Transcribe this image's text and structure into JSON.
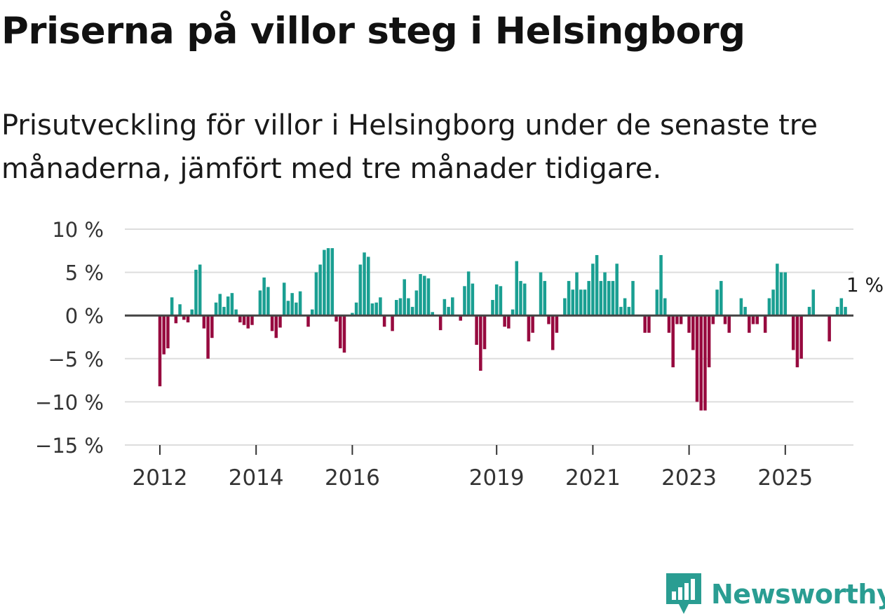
{
  "title": "Priserna på villor steg i Helsingborg",
  "subtitle": "Prisutveckling för villor i Helsingborg under de senaste tre månaderna, jämfört med tre månader tidigare.",
  "brand": "Newsworthy",
  "colors": {
    "positive": "#1a9f92",
    "negative": "#970a3f",
    "brand": "#2a9d92"
  },
  "chart_data": {
    "type": "bar",
    "title": "Priserna på villor steg i Helsingborg",
    "xlabel": "",
    "ylabel": "",
    "x_start": 2012.0,
    "step_years": 0.08333,
    "ylim": [
      -15,
      10
    ],
    "y_ticks": [
      {
        "value": 10,
        "label": "10 %"
      },
      {
        "value": 5,
        "label": "5 %"
      },
      {
        "value": 0,
        "label": "0 %"
      },
      {
        "value": -5,
        "label": "−5 %"
      },
      {
        "value": -10,
        "label": "−10 %"
      },
      {
        "value": -15,
        "label": "−15 %"
      }
    ],
    "x_ticks": [
      {
        "value": 2012,
        "label": "2012"
      },
      {
        "value": 2014,
        "label": "2014"
      },
      {
        "value": 2016,
        "label": "2016"
      },
      {
        "value": 2019,
        "label": "2019"
      },
      {
        "value": 2021,
        "label": "2021"
      },
      {
        "value": 2023,
        "label": "2023"
      },
      {
        "value": 2025,
        "label": "2025"
      }
    ],
    "last_label": "1 %",
    "values": [
      -8.2,
      -4.5,
      -3.8,
      2.1,
      -0.9,
      1.3,
      -0.5,
      -0.8,
      0.7,
      5.3,
      5.9,
      -1.5,
      -5.0,
      -2.6,
      1.5,
      2.5,
      1.0,
      2.2,
      2.6,
      0.7,
      -0.8,
      -1.1,
      -1.5,
      -1.1,
      0.0,
      2.9,
      4.4,
      3.3,
      -1.8,
      -2.6,
      -1.4,
      3.8,
      1.7,
      2.6,
      1.5,
      2.8,
      0.0,
      -1.3,
      0.7,
      5.0,
      5.9,
      7.6,
      7.8,
      7.8,
      -0.7,
      -3.8,
      -4.3,
      0.0,
      0.3,
      1.5,
      5.9,
      7.3,
      6.8,
      1.4,
      1.5,
      2.1,
      -1.3,
      0.0,
      -1.8,
      1.8,
      2.0,
      4.2,
      2.0,
      1.0,
      2.9,
      4.8,
      4.6,
      4.3,
      0.4,
      0.0,
      -1.7,
      1.9,
      1.0,
      2.1,
      0.0,
      -0.6,
      3.4,
      5.1,
      3.7,
      -3.4,
      -6.4,
      -3.9,
      0.0,
      1.8,
      3.6,
      3.4,
      -1.3,
      -1.5,
      0.7,
      6.3,
      4.0,
      3.7,
      -3.0,
      -2.0,
      0.0,
      5.0,
      4.0,
      -1.0,
      -4.0,
      -2.0,
      0.0,
      2.0,
      4.0,
      3.0,
      5.0,
      3.0,
      3.0,
      4.0,
      6.0,
      7.0,
      4.0,
      5.0,
      4.0,
      4.0,
      6.0,
      1.0,
      2.0,
      1.0,
      4.0,
      0.0,
      0.0,
      -2.0,
      -2.0,
      0.0,
      3.0,
      7.0,
      2.0,
      -2.0,
      -6.0,
      -1.0,
      -1.0,
      0.0,
      -2.0,
      -4.0,
      -10.0,
      -11.0,
      -11.0,
      -6.0,
      -1.0,
      3.0,
      4.0,
      -1.0,
      -2.0,
      0.0,
      0.0,
      2.0,
      1.0,
      -2.0,
      -1.0,
      -1.0,
      0.0,
      -2.0,
      2.0,
      3.0,
      6.0,
      5.0,
      5.0,
      0.0,
      -4.0,
      -6.0,
      -5.0,
      0.0,
      1.0,
      3.0,
      0.0,
      0.0,
      0.0,
      -3.0,
      0.0,
      1.0,
      2.0,
      1.0
    ]
  }
}
